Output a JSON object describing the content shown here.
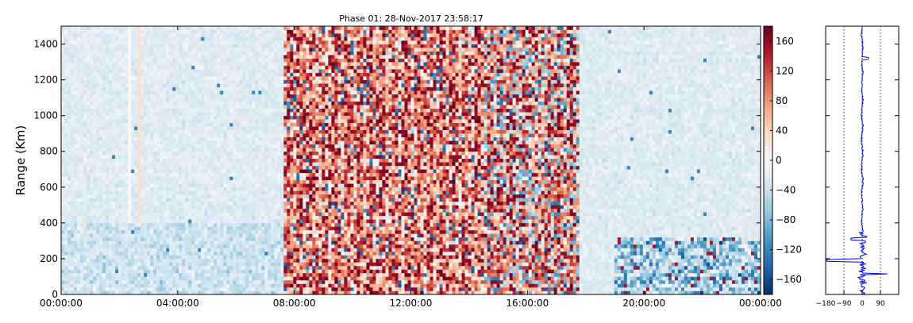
{
  "chart_data": [
    {
      "type": "heatmap",
      "title": "Phase 01: 28-Nov-2017 23:58:17",
      "xlabel": "",
      "ylabel": "Range (Km)",
      "x_ticks": [
        "00:00:00",
        "04:00:00",
        "08:00:00",
        "12:00:00",
        "16:00:00",
        "20:00:00",
        "00:00:00"
      ],
      "xlim_hours": [
        0,
        24
      ],
      "y_ticks": [
        0,
        200,
        400,
        600,
        800,
        1000,
        1200,
        1400
      ],
      "ylim": [
        0,
        1500
      ],
      "colorbar": {
        "ticks": [
          -160,
          -120,
          -80,
          -40,
          0,
          40,
          80,
          120,
          160
        ],
        "range": [
          -180,
          180
        ],
        "colormap": [
          "#053061",
          "#2166ac",
          "#4393c3",
          "#92c5de",
          "#d1e5f0",
          "#f7f7f7",
          "#fddbc7",
          "#f4a582",
          "#d6604d",
          "#b2182b",
          "#67001f"
        ]
      },
      "grid": false
    },
    {
      "type": "line",
      "xlabel": "",
      "ylabel": "",
      "x_ticks": [
        -180,
        -90,
        0,
        90
      ],
      "xlim": [
        -180,
        180
      ],
      "ylim": [
        0,
        1500
      ],
      "reference_lines": [
        -90,
        0,
        90
      ],
      "line_color": "#0000ff"
    }
  ]
}
